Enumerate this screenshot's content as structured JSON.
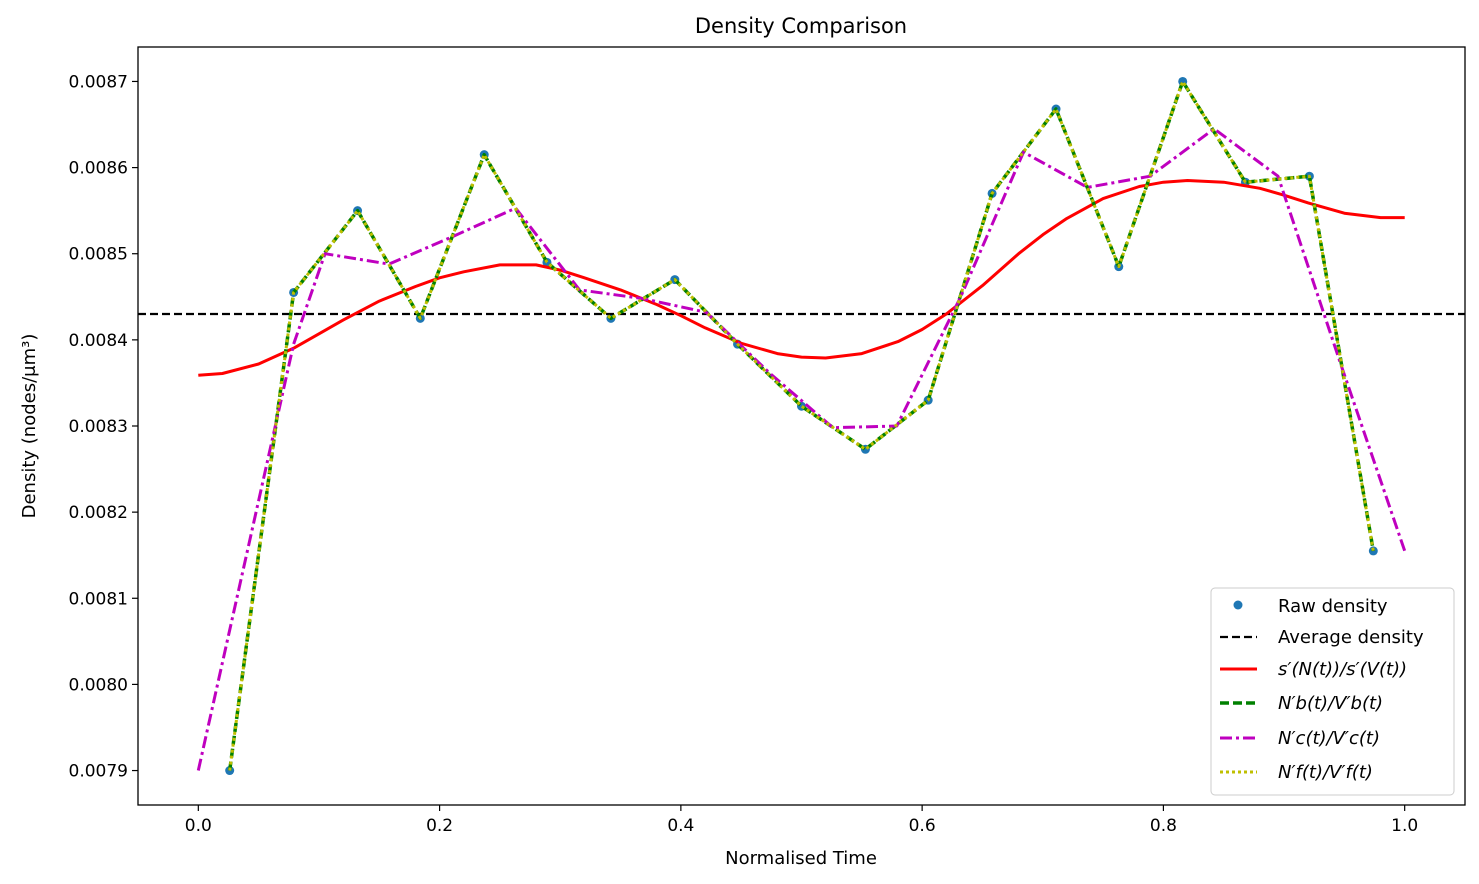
{
  "chart_data": {
    "type": "line",
    "title": "Density Comparison",
    "xlabel": "Normalised Time",
    "ylabel": "Density (nodes/μm³)",
    "xlim": [
      -0.05,
      1.05
    ],
    "ylim": [
      0.00786,
      0.00874
    ],
    "xticks": [
      "0.0",
      "0.2",
      "0.4",
      "0.6",
      "0.8",
      "1.0"
    ],
    "yticks": [
      "0.0079",
      "0.0080",
      "0.0081",
      "0.0082",
      "0.0083",
      "0.0084",
      "0.0085",
      "0.0086",
      "0.0087"
    ],
    "grid": false,
    "legend_position": "lower-right",
    "colors": {
      "raw": "#1f77b4",
      "average": "#000000",
      "spline": "#ff0000",
      "backward": "#008000",
      "central": "#bf00bf",
      "forward": "#bfbf00"
    },
    "series": [
      {
        "name": "Raw density",
        "style": "markers",
        "x": [
          0.026,
          0.079,
          0.132,
          0.184,
          0.237,
          0.289,
          0.342,
          0.395,
          0.447,
          0.5,
          0.553,
          0.605,
          0.658,
          0.711,
          0.763,
          0.816,
          0.868,
          0.921,
          0.974
        ],
        "y": [
          0.0079,
          0.008455,
          0.00855,
          0.008425,
          0.008615,
          0.00849,
          0.008425,
          0.00847,
          0.008395,
          0.008323,
          0.008273,
          0.00833,
          0.00857,
          0.008668,
          0.008485,
          0.0087,
          0.008583,
          0.00859,
          0.008155
        ]
      },
      {
        "name": "Average density",
        "style": "dashed",
        "x": [
          -0.05,
          1.05
        ],
        "y": [
          0.00843,
          0.00843
        ]
      },
      {
        "name": "s′(N(t))/s′(V(t))",
        "style": "solid",
        "x": [
          0.0,
          0.02,
          0.05,
          0.08,
          0.1,
          0.12,
          0.15,
          0.18,
          0.2,
          0.22,
          0.25,
          0.28,
          0.3,
          0.32,
          0.35,
          0.38,
          0.4,
          0.42,
          0.45,
          0.48,
          0.5,
          0.52,
          0.55,
          0.58,
          0.6,
          0.62,
          0.65,
          0.68,
          0.7,
          0.72,
          0.75,
          0.78,
          0.8,
          0.82,
          0.85,
          0.88,
          0.9,
          0.92,
          0.95,
          0.98,
          1.0
        ],
        "y": [
          0.008359,
          0.008361,
          0.008372,
          0.008391,
          0.008407,
          0.008423,
          0.008445,
          0.008462,
          0.008472,
          0.008479,
          0.008487,
          0.008487,
          0.008481,
          0.008472,
          0.008458,
          0.008441,
          0.008428,
          0.008414,
          0.008396,
          0.008384,
          0.00838,
          0.008379,
          0.008384,
          0.008398,
          0.008412,
          0.00843,
          0.008463,
          0.0085,
          0.008522,
          0.008541,
          0.008564,
          0.008578,
          0.008583,
          0.008585,
          0.008583,
          0.008576,
          0.008568,
          0.008559,
          0.008547,
          0.008542,
          0.008542
        ]
      },
      {
        "name": "N′b(t)/V′b(t)",
        "style": "dashed",
        "x": [
          0.026,
          0.079,
          0.132,
          0.184,
          0.237,
          0.289,
          0.342,
          0.395,
          0.447,
          0.5,
          0.553,
          0.605,
          0.658,
          0.711,
          0.763,
          0.816,
          0.868,
          0.921,
          0.974
        ],
        "y": [
          0.0079,
          0.008455,
          0.00855,
          0.008425,
          0.008615,
          0.00849,
          0.008425,
          0.00847,
          0.008395,
          0.008323,
          0.008273,
          0.00833,
          0.00857,
          0.008668,
          0.008485,
          0.0087,
          0.008583,
          0.00859,
          0.008155
        ]
      },
      {
        "name": "N′c(t)/V′c(t)",
        "style": "dashdot",
        "x": [
          0.0,
          0.079,
          0.105,
          0.158,
          0.211,
          0.263,
          0.316,
          0.368,
          0.421,
          0.474,
          0.526,
          0.579,
          0.632,
          0.684,
          0.737,
          0.789,
          0.842,
          0.895,
          0.947,
          1.0
        ],
        "y": [
          0.0079,
          0.008395,
          0.0085,
          0.008488,
          0.00852,
          0.008553,
          0.008458,
          0.008448,
          0.008432,
          0.008361,
          0.008298,
          0.0083,
          0.00845,
          0.008618,
          0.008577,
          0.00859,
          0.008645,
          0.00859,
          0.008372,
          0.008155
        ]
      },
      {
        "name": "N′f(t)/V′f(t)",
        "style": "dotted",
        "x": [
          0.026,
          0.079,
          0.132,
          0.184,
          0.237,
          0.289,
          0.342,
          0.395,
          0.447,
          0.5,
          0.553,
          0.605,
          0.658,
          0.711,
          0.763,
          0.816,
          0.868,
          0.921,
          0.974
        ],
        "y": [
          0.0079,
          0.008455,
          0.00855,
          0.008425,
          0.008615,
          0.00849,
          0.008425,
          0.00847,
          0.008395,
          0.008323,
          0.008273,
          0.00833,
          0.00857,
          0.008668,
          0.008485,
          0.0087,
          0.008583,
          0.00859,
          0.008155
        ]
      }
    ]
  }
}
